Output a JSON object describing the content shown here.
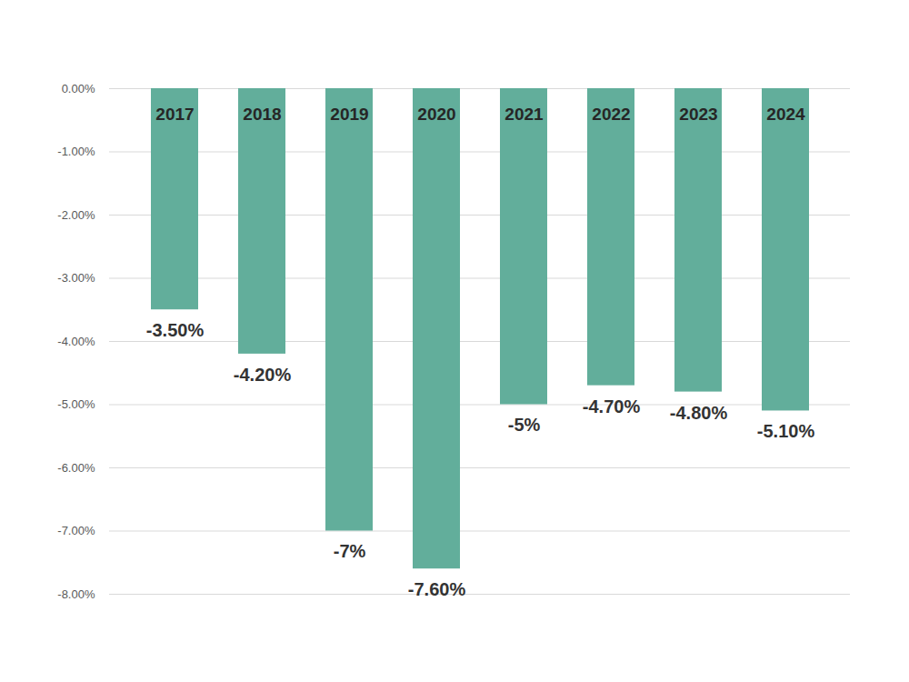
{
  "chart_data": {
    "type": "bar",
    "categories": [
      "2017",
      "2018",
      "2019",
      "2020",
      "2021",
      "2022",
      "2023",
      "2024"
    ],
    "values": [
      -3.5,
      -4.2,
      -7,
      -7.6,
      -5,
      -4.7,
      -4.8,
      -5.1
    ],
    "value_labels": [
      "-3.50%",
      "-4.20%",
      "-7%",
      "-7.60%",
      "-5%",
      "-4.70%",
      "-4.80%",
      "-5.10%"
    ],
    "color": "#62ae9b",
    "ylim": [
      -8,
      0
    ],
    "yticks": [
      {
        "value": 0,
        "label": "0.00%"
      },
      {
        "value": -1,
        "label": "-1.00%"
      },
      {
        "value": -2,
        "label": "-2.00%"
      },
      {
        "value": -3,
        "label": "-3.00%"
      },
      {
        "value": -4,
        "label": "-4.00%"
      },
      {
        "value": -5,
        "label": "-5.00%"
      },
      {
        "value": -6,
        "label": "-6.00%"
      },
      {
        "value": -7,
        "label": "-7.00%"
      },
      {
        "value": -8,
        "label": "-8.00%"
      }
    ],
    "grid": true,
    "data_labels": true,
    "tick_labels": "y"
  }
}
